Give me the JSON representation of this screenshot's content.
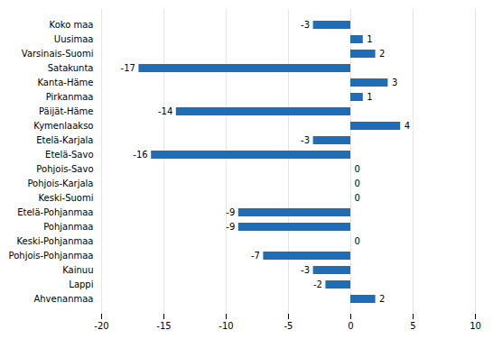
{
  "chart_data": {
    "type": "bar",
    "orientation": "horizontal",
    "categories": [
      "Koko maa",
      "Uusimaa",
      "Varsinais-Suomi",
      "Satakunta",
      "Kanta-Häme",
      "Pirkanmaa",
      "Päijät-Häme",
      "Kymenlaakso",
      "Etelä-Karjala",
      "Etelä-Savo",
      "Pohjois-Savo",
      "Pohjois-Karjala",
      "Keski-Suomi",
      "Etelä-Pohjanmaa",
      "Pohjanmaa",
      "Keski-Pohjanmaa",
      "Pohjois-Pohjanmaa",
      "Kainuu",
      "Lappi",
      "Ahvenanmaa"
    ],
    "values": [
      -3,
      1,
      2,
      -17,
      3,
      1,
      -14,
      4,
      -3,
      -16,
      0,
      0,
      0,
      -9,
      -9,
      0,
      -7,
      -3,
      -2,
      2
    ],
    "color": "#1F6EB5",
    "xlim": [
      -20,
      10
    ],
    "xticks": [
      -20,
      -15,
      -10,
      -5,
      0,
      5,
      10
    ],
    "grid": true,
    "data_labels": true
  }
}
